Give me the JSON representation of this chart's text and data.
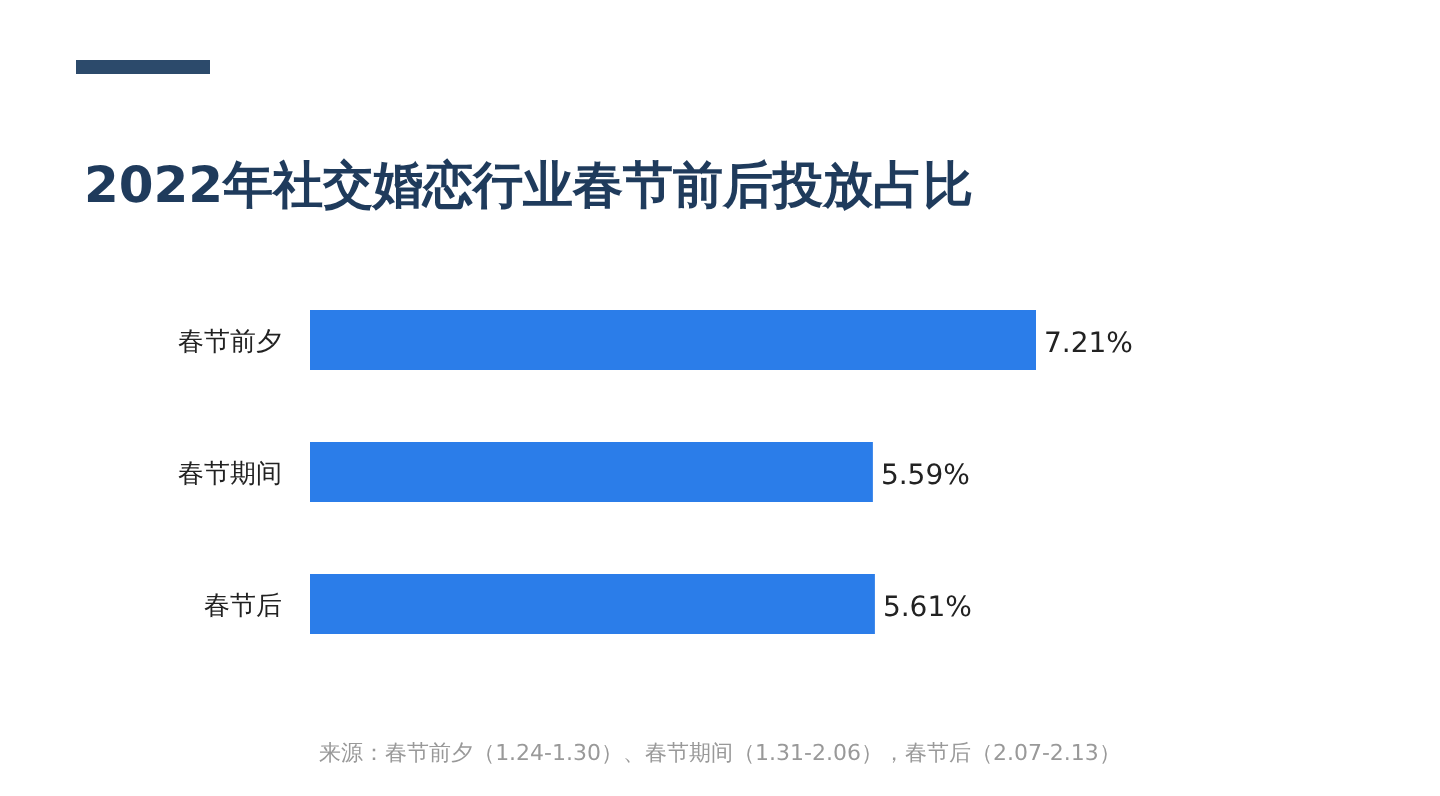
{
  "chart_data": {
    "type": "bar",
    "orientation": "horizontal",
    "title": "2022年社交婚恋行业春节前后投放占比",
    "categories": [
      "春节前夕",
      "春节期间",
      "春节后"
    ],
    "values": [
      7.21,
      5.59,
      5.61
    ],
    "value_labels": [
      "7.21%",
      "5.59%",
      "5.61%"
    ],
    "color": "#2b7de9",
    "xlim": [
      0,
      7.21
    ],
    "annotations": [
      "来源：春节前夕（1.24-1.30）、春节期间（1.31-2.06），春节后（2.07-2.13）"
    ]
  }
}
